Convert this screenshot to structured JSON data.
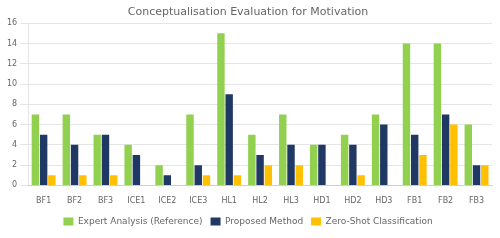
{
  "chart_data": {
    "type": "bar",
    "title": "Conceptualisation Evaluation for Motivation",
    "categories": [
      "BF1",
      "BF2",
      "BF3",
      "ICE1",
      "ICE2",
      "ICE3",
      "HL1",
      "HL2",
      "HL3",
      "HD1",
      "HD2",
      "HD3",
      "FB1",
      "FB2",
      "FB3"
    ],
    "series": [
      {
        "name": "Expert Analysis (Reference)",
        "color": "#92d050",
        "values": [
          7,
          7,
          5,
          4,
          2,
          7,
          15,
          5,
          7,
          4,
          5,
          7,
          14,
          14,
          6
        ]
      },
      {
        "name": "Proposed Method",
        "color": "#1f3864",
        "values": [
          5,
          4,
          5,
          3,
          1,
          2,
          9,
          3,
          4,
          4,
          4,
          6,
          5,
          7,
          2
        ]
      },
      {
        "name": "Zero-Shot Classification",
        "color": "#ffc000",
        "values": [
          1,
          1,
          1,
          0,
          0,
          1,
          1,
          2,
          2,
          0,
          1,
          0,
          3,
          6,
          2
        ]
      }
    ],
    "ylim": [
      0,
      16
    ],
    "yticks": [
      0,
      2,
      4,
      6,
      8,
      10,
      12,
      14,
      16
    ],
    "grid": true,
    "legend": "bottom"
  }
}
